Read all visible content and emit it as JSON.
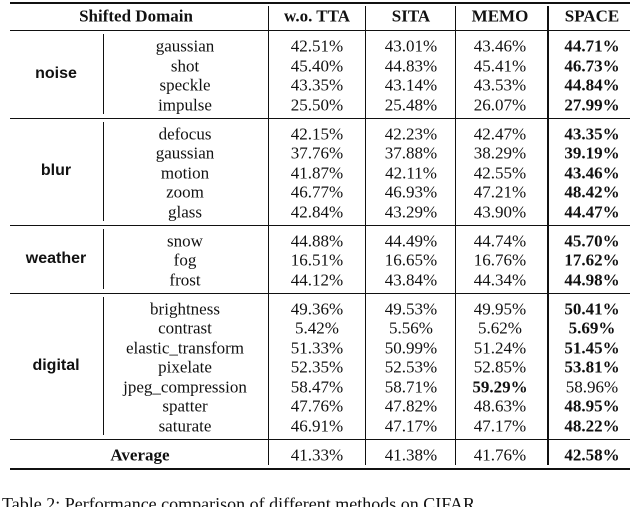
{
  "header": {
    "domain": "Shifted Domain",
    "columns": [
      "w.o. TTA",
      "SITA",
      "MEMO",
      "SPACE"
    ]
  },
  "groups": [
    {
      "name": "noise",
      "rows": [
        {
          "name": "gaussian",
          "values": [
            "42.51%",
            "43.01%",
            "43.46%",
            "44.71%"
          ],
          "best": 3
        },
        {
          "name": "shot",
          "values": [
            "45.40%",
            "44.83%",
            "45.41%",
            "46.73%"
          ],
          "best": 3
        },
        {
          "name": "speckle",
          "values": [
            "43.35%",
            "43.14%",
            "43.53%",
            "44.84%"
          ],
          "best": 3
        },
        {
          "name": "impulse",
          "values": [
            "25.50%",
            "25.48%",
            "26.07%",
            "27.99%"
          ],
          "best": 3
        }
      ]
    },
    {
      "name": "blur",
      "rows": [
        {
          "name": "defocus",
          "values": [
            "42.15%",
            "42.23%",
            "42.47%",
            "43.35%"
          ],
          "best": 3
        },
        {
          "name": "gaussian",
          "values": [
            "37.76%",
            "37.88%",
            "38.29%",
            "39.19%"
          ],
          "best": 3
        },
        {
          "name": "motion",
          "values": [
            "41.87%",
            "42.11%",
            "42.55%",
            "43.46%"
          ],
          "best": 3
        },
        {
          "name": "zoom",
          "values": [
            "46.77%",
            "46.93%",
            "47.21%",
            "48.42%"
          ],
          "best": 3
        },
        {
          "name": "glass",
          "values": [
            "42.84%",
            "43.29%",
            "43.90%",
            "44.47%"
          ],
          "best": 3
        }
      ]
    },
    {
      "name": "weather",
      "rows": [
        {
          "name": "snow",
          "values": [
            "44.88%",
            "44.49%",
            "44.74%",
            "45.70%"
          ],
          "best": 3
        },
        {
          "name": "fog",
          "values": [
            "16.51%",
            "16.65%",
            "16.76%",
            "17.62%"
          ],
          "best": 3
        },
        {
          "name": "frost",
          "values": [
            "44.12%",
            "43.84%",
            "44.34%",
            "44.98%"
          ],
          "best": 3
        }
      ]
    },
    {
      "name": "digital",
      "rows": [
        {
          "name": "brightness",
          "values": [
            "49.36%",
            "49.53%",
            "49.95%",
            "50.41%"
          ],
          "best": 3
        },
        {
          "name": "contrast",
          "values": [
            "5.42%",
            "5.56%",
            "5.62%",
            "5.69%"
          ],
          "best": 3
        },
        {
          "name": "elastic_transform",
          "values": [
            "51.33%",
            "50.99%",
            "51.24%",
            "51.45%"
          ],
          "best": 3
        },
        {
          "name": "pixelate",
          "values": [
            "52.35%",
            "52.53%",
            "52.85%",
            "53.81%"
          ],
          "best": 3
        },
        {
          "name": "jpeg_compression",
          "values": [
            "58.47%",
            "58.71%",
            "59.29%",
            "58.96%"
          ],
          "best": 2
        },
        {
          "name": "spatter",
          "values": [
            "47.76%",
            "47.82%",
            "48.63%",
            "48.95%"
          ],
          "best": 3
        },
        {
          "name": "saturate",
          "values": [
            "46.91%",
            "47.17%",
            "47.17%",
            "48.22%"
          ],
          "best": 3
        }
      ]
    }
  ],
  "average": {
    "name": "Average",
    "values": [
      "41.33%",
      "41.38%",
      "41.76%",
      "42.58%"
    ],
    "best": 3
  },
  "caption": "Table 2: Performance comparison of different methods on CIFAR"
}
